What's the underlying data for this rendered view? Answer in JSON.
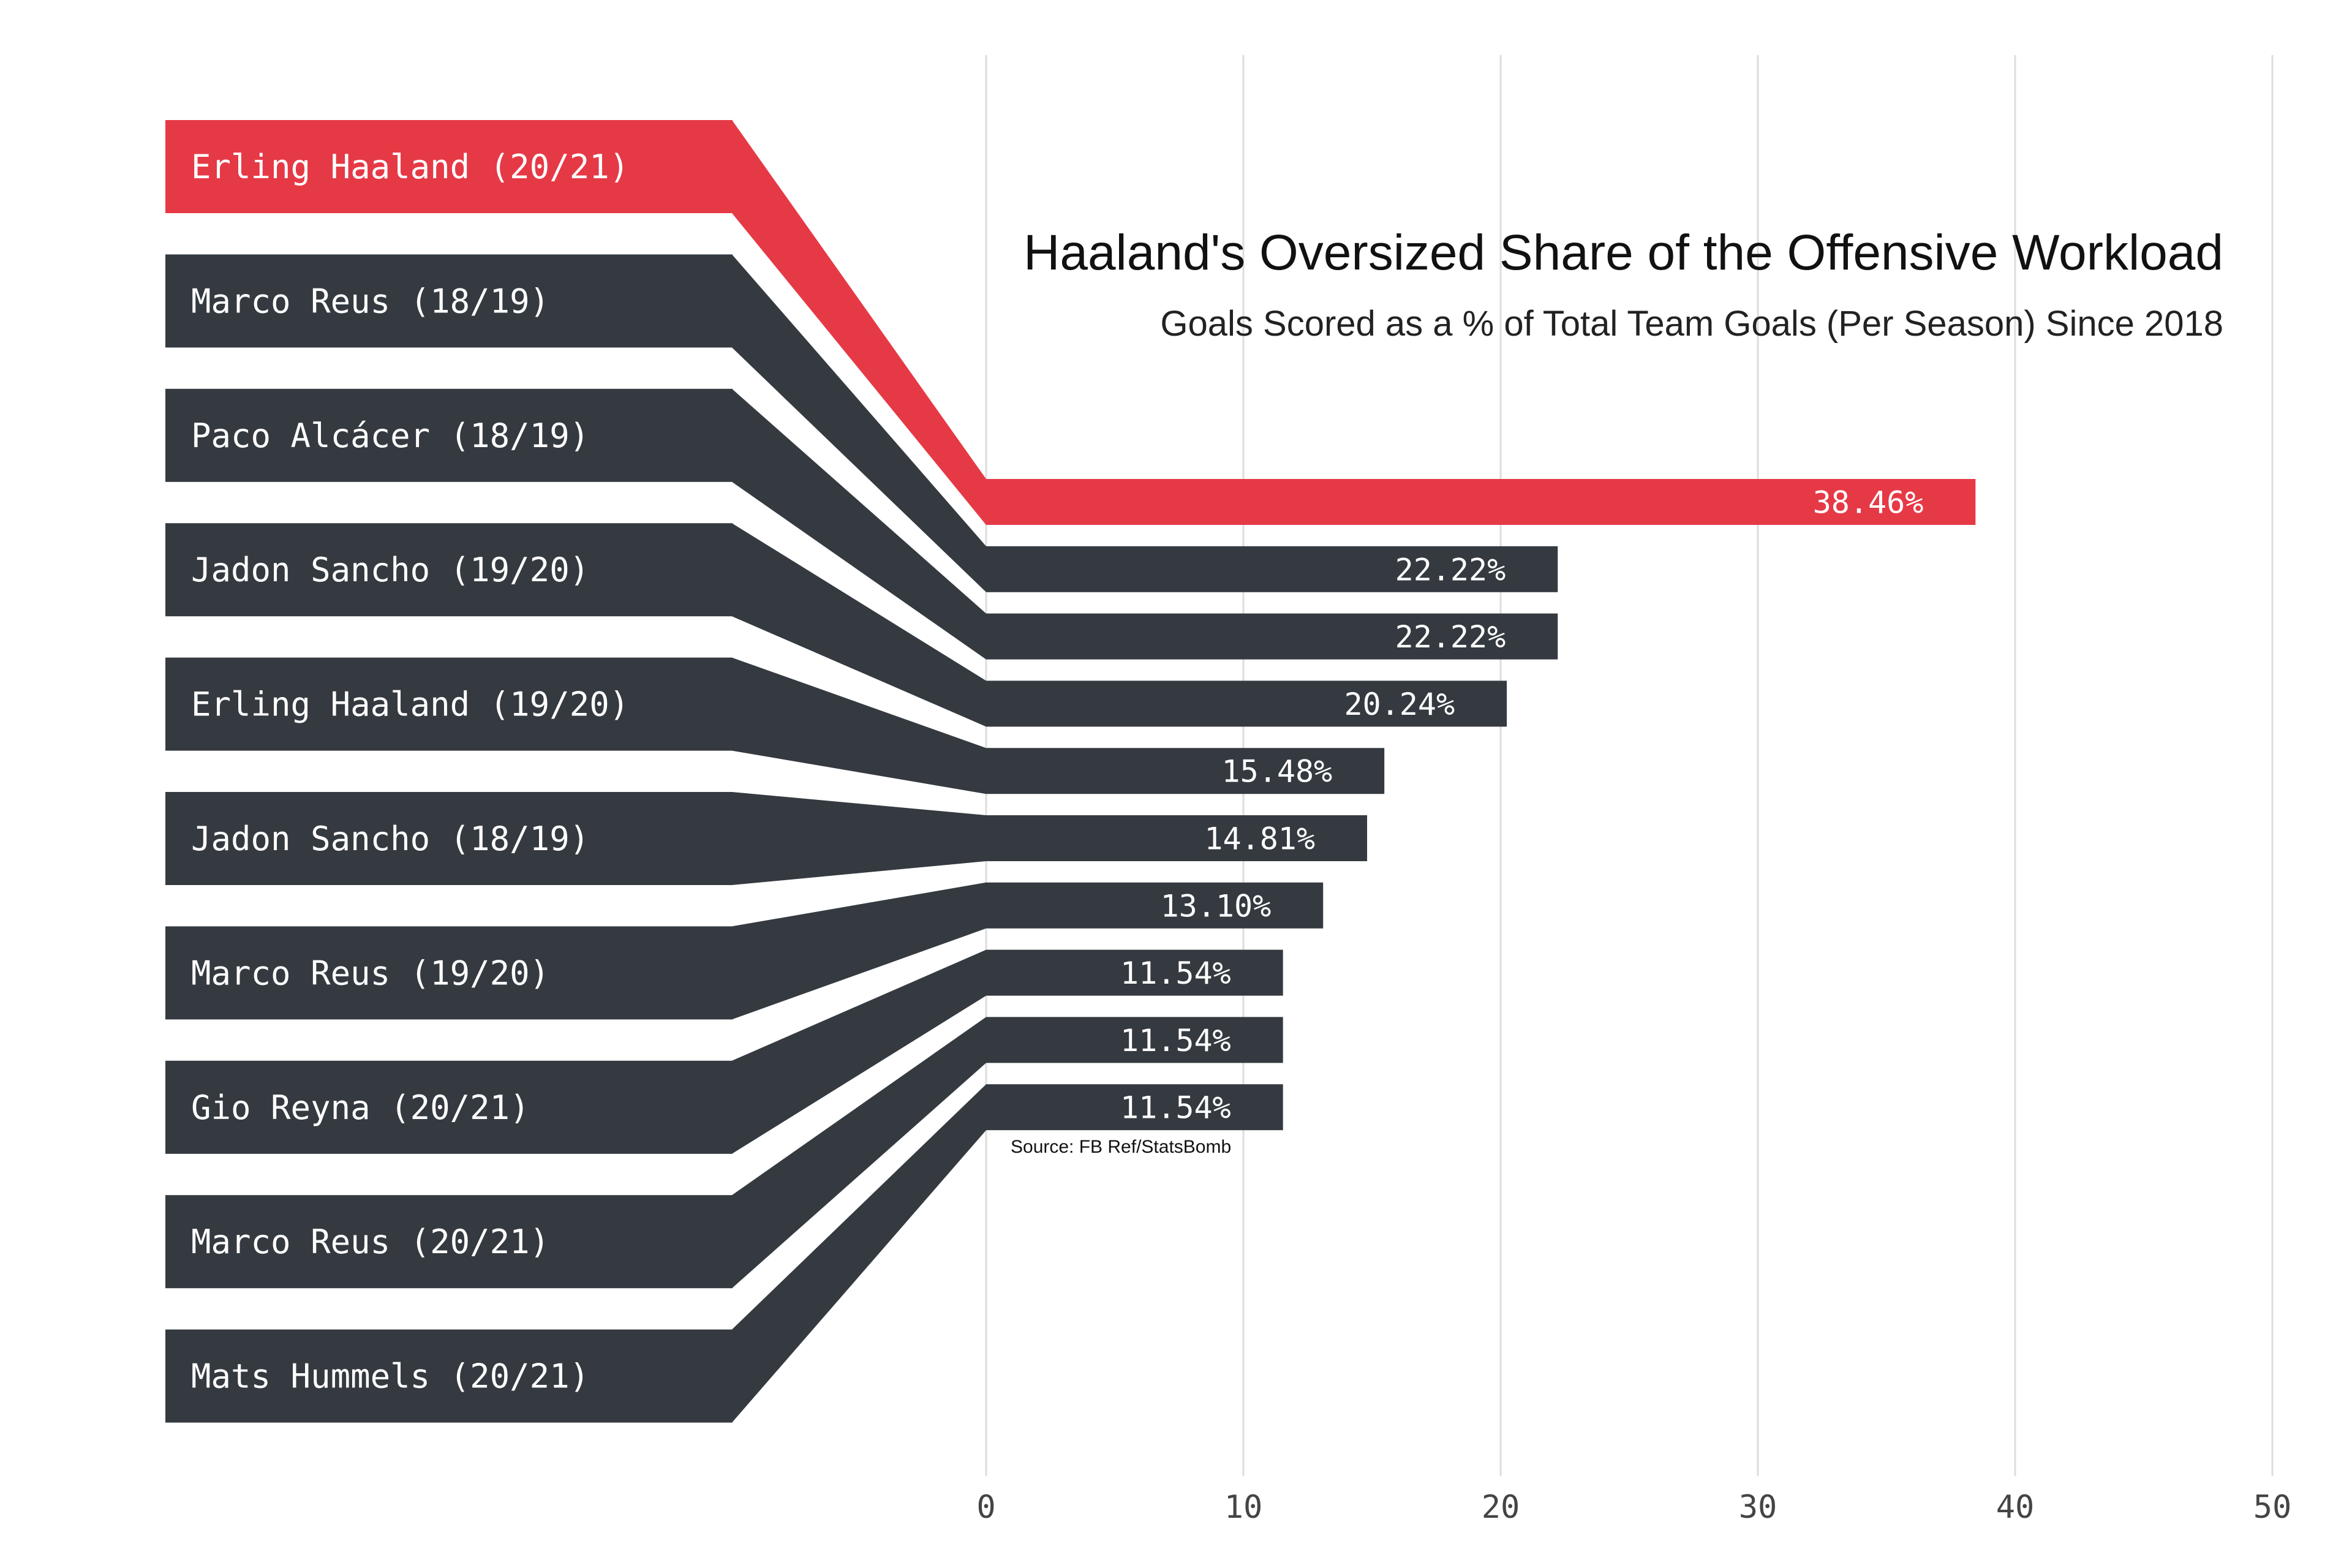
{
  "chart_data": {
    "type": "bar",
    "title": "Haaland's Oversized Share of the Offensive Workload",
    "subtitle": "Goals Scored as a % of Total Team Goals (Per Season) Since 2018",
    "source": "Source: FB Ref/StatsBomb",
    "categories": [
      "Erling Haaland (20/21)",
      "Marco Reus (18/19)",
      "Paco Alcácer (18/19)",
      "Jadon Sancho (19/20)",
      "Erling Haaland (19/20)",
      "Jadon Sancho (18/19)",
      "Marco Reus (19/20)",
      "Gio Reyna (20/21)",
      "Marco Reus (20/21)",
      "Mats Hummels (20/21)"
    ],
    "values": [
      38.46,
      22.22,
      22.22,
      20.24,
      15.48,
      14.81,
      13.1,
      11.54,
      11.54,
      11.54
    ],
    "value_labels": [
      "38.46%",
      "22.22%",
      "22.22%",
      "20.24%",
      "15.48%",
      "14.81%",
      "13.10%",
      "11.54%",
      "11.54%",
      "11.54%"
    ],
    "highlight_category": "Erling Haaland (20/21)",
    "xlim": [
      0,
      50
    ],
    "xticks": [
      "0",
      "10",
      "20",
      "30",
      "40",
      "50"
    ],
    "xlabel": "",
    "ylabel": "",
    "grid": "vertical",
    "colors": {
      "highlight": "#E63946",
      "default": "#343A40",
      "grid": "#DDDDDD",
      "text_light": "#FFFFFF",
      "text_dark": "#111111",
      "tick": "#444444"
    }
  }
}
